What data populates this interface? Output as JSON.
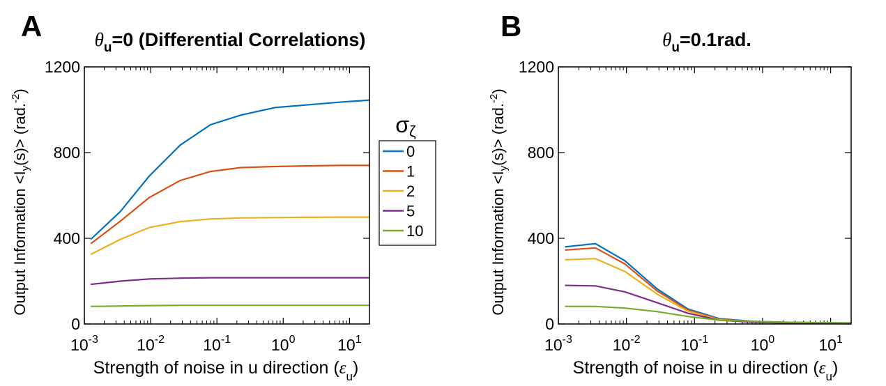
{
  "panels": [
    {
      "letter": "A",
      "title_symbol": "θ",
      "title_sub": "u",
      "title_rest": "=0 (Differential Correlations)",
      "ylabel": "Output Information <I",
      "ylabel_sub": "y",
      "ylabel_rest": "(s)> (rad.",
      "ylabel_sup": "-2",
      "ylabel_end": ")",
      "xlabel": "Strength of noise in u direction (",
      "xlabel_symbol": "ε",
      "xlabel_sub": "u",
      "xlabel_end": ")"
    },
    {
      "letter": "B",
      "title_symbol": "θ",
      "title_sub": "u",
      "title_rest": "=0.1rad.",
      "ylabel": "Output Information <I",
      "ylabel_sub": "y",
      "ylabel_rest": "(s)> (rad.",
      "ylabel_sup": "-2",
      "ylabel_end": ")",
      "xlabel": "Strength of noise in u direction (",
      "xlabel_symbol": "ε",
      "xlabel_sub": "u",
      "xlabel_end": ")"
    }
  ],
  "legend": {
    "title_symbol": "σ",
    "title_sub": "ζ",
    "entries": [
      "0",
      "1",
      "2",
      "5",
      "10"
    ]
  },
  "colors": {
    "s0": "#0072BD",
    "s1": "#D95319",
    "s2": "#EDB120",
    "s5": "#7E2F8E",
    "s10": "#77AC30"
  },
  "chart_data": [
    {
      "type": "line",
      "title": "θu=0 (Differential Correlations)",
      "xlabel": "Strength of noise in u direction (εu)",
      "ylabel": "Output Information <Iy(s)> (rad.-2)",
      "xscale": "log",
      "xlim": [
        0.001,
        20
      ],
      "ylim": [
        0,
        1200
      ],
      "yticks": [
        0,
        400,
        800,
        1200
      ],
      "xticks": [
        0.001,
        0.01,
        0.1,
        1,
        10
      ],
      "xtick_labels": [
        "10^-3",
        "10^-2",
        "10^-1",
        "10^0",
        "10^1"
      ],
      "x": [
        0.00125,
        0.0035,
        0.0095,
        0.028,
        0.08,
        0.23,
        0.75,
        2.2,
        7,
        20
      ],
      "series": [
        {
          "name": "0",
          "values": [
            395,
            525,
            690,
            835,
            930,
            975,
            1010,
            1022,
            1035,
            1045
          ]
        },
        {
          "name": "1",
          "values": [
            375,
            480,
            590,
            670,
            712,
            730,
            735,
            738,
            740,
            740
          ]
        },
        {
          "name": "2",
          "values": [
            325,
            395,
            450,
            478,
            490,
            495,
            497,
            498,
            499,
            499
          ]
        },
        {
          "name": "5",
          "values": [
            185,
            200,
            210,
            214,
            216,
            216,
            216,
            216,
            216,
            216
          ]
        },
        {
          "name": "10",
          "values": [
            82,
            84,
            86,
            87,
            87,
            87,
            87,
            87,
            87,
            87
          ]
        }
      ],
      "legend_title": "σζ",
      "legend_placement": "right"
    },
    {
      "type": "line",
      "title": "θu=0.1rad.",
      "xlabel": "Strength of noise in u direction (εu)",
      "ylabel": "Output Information <Iy(s)> (rad.-2)",
      "xscale": "log",
      "xlim": [
        0.001,
        20
      ],
      "ylim": [
        0,
        1200
      ],
      "yticks": [
        0,
        400,
        800,
        1200
      ],
      "xticks": [
        0.001,
        0.01,
        0.1,
        1,
        10
      ],
      "xtick_labels": [
        "10^-3",
        "10^-2",
        "10^-1",
        "10^0",
        "10^1"
      ],
      "x": [
        0.00125,
        0.0035,
        0.0095,
        0.028,
        0.08,
        0.23,
        0.75,
        2.2,
        7,
        20
      ],
      "series": [
        {
          "name": "0",
          "values": [
            360,
            375,
            295,
            165,
            70,
            25,
            12,
            8,
            6,
            5
          ]
        },
        {
          "name": "1",
          "values": [
            345,
            355,
            280,
            155,
            65,
            22,
            10,
            6,
            4,
            3
          ]
        },
        {
          "name": "2",
          "values": [
            300,
            305,
            245,
            140,
            60,
            20,
            9,
            5,
            3,
            3
          ]
        },
        {
          "name": "5",
          "values": [
            180,
            178,
            150,
            100,
            50,
            18,
            8,
            5,
            3,
            2
          ]
        },
        {
          "name": "10",
          "values": [
            82,
            82,
            74,
            58,
            35,
            18,
            12,
            8,
            6,
            5
          ]
        }
      ]
    }
  ]
}
